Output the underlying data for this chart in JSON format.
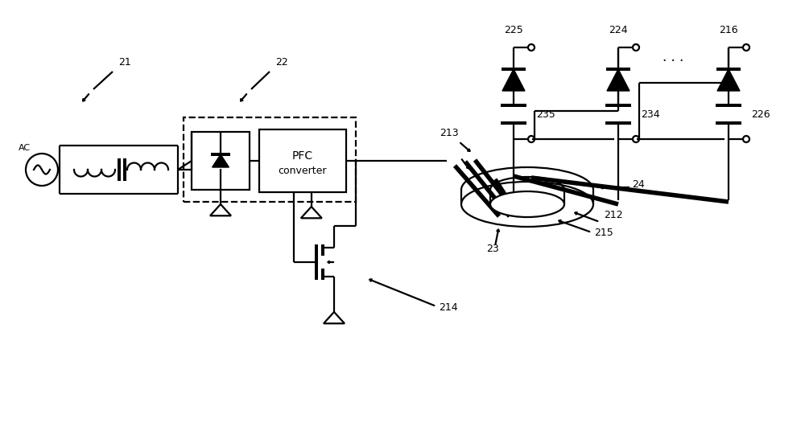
{
  "bg_color": "#ffffff",
  "lc": "#000000",
  "lw": 1.6,
  "tlw": 4.0,
  "fig_w": 10.0,
  "fig_h": 5.41,
  "xlim": [
    0,
    10
  ],
  "ylim": [
    0,
    5.41
  ]
}
